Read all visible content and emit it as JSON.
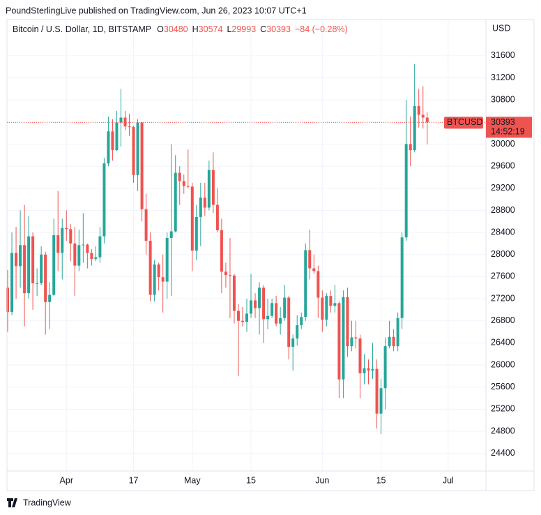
{
  "header": "PoundSterlingLive published on TradingView.com, Jun 26, 2023 10:07 UTC+1",
  "footer": "TradingView",
  "chart_data": {
    "type": "candlestick",
    "title": "Bitcoin / U.S. Dollar, 1D, BITSTAMP",
    "ohlc_labels": [
      "O",
      "H",
      "L",
      "C"
    ],
    "change": "−84 (−0.28%)",
    "currency": "USD",
    "symbol_tag": "BTCUSD",
    "countdown": "14:52:19",
    "up_color": "#26a69a",
    "down_color": "#ef5350",
    "grid": true,
    "x": [
      "2023-03-18",
      "2023-03-19",
      "2023-03-20",
      "2023-03-21",
      "2023-03-22",
      "2023-03-23",
      "2023-03-24",
      "2023-03-25",
      "2023-03-26",
      "2023-03-27",
      "2023-03-28",
      "2023-03-29",
      "2023-03-30",
      "2023-03-31",
      "2023-04-01",
      "2023-04-02",
      "2023-04-03",
      "2023-04-04",
      "2023-04-05",
      "2023-04-06",
      "2023-04-07",
      "2023-04-08",
      "2023-04-09",
      "2023-04-10",
      "2023-04-11",
      "2023-04-12",
      "2023-04-13",
      "2023-04-14",
      "2023-04-15",
      "2023-04-16",
      "2023-04-17",
      "2023-04-18",
      "2023-04-19",
      "2023-04-20",
      "2023-04-21",
      "2023-04-22",
      "2023-04-23",
      "2023-04-24",
      "2023-04-25",
      "2023-04-26",
      "2023-04-27",
      "2023-04-28",
      "2023-04-29",
      "2023-04-30",
      "2023-05-01",
      "2023-05-02",
      "2023-05-03",
      "2023-05-04",
      "2023-05-05",
      "2023-05-06",
      "2023-05-07",
      "2023-05-08",
      "2023-05-09",
      "2023-05-10",
      "2023-05-11",
      "2023-05-12",
      "2023-05-13",
      "2023-05-14",
      "2023-05-15",
      "2023-05-16",
      "2023-05-17",
      "2023-05-18",
      "2023-05-19",
      "2023-05-20",
      "2023-05-21",
      "2023-05-22",
      "2023-05-23",
      "2023-05-24",
      "2023-05-25",
      "2023-05-26",
      "2023-05-27",
      "2023-05-28",
      "2023-05-29",
      "2023-05-30",
      "2023-05-31",
      "2023-06-01",
      "2023-06-02",
      "2023-06-03",
      "2023-06-04",
      "2023-06-05",
      "2023-06-06",
      "2023-06-07",
      "2023-06-08",
      "2023-06-09",
      "2023-06-10",
      "2023-06-11",
      "2023-06-12",
      "2023-06-13",
      "2023-06-14",
      "2023-06-15",
      "2023-06-16",
      "2023-06-17",
      "2023-06-18",
      "2023-06-19",
      "2023-06-20",
      "2023-06-21",
      "2023-06-22",
      "2023-06-23",
      "2023-06-24",
      "2023-06-25",
      "2023-06-26"
    ],
    "open": [
      27400,
      26960,
      28030,
      27790,
      28170,
      27300,
      28330,
      27480,
      27480,
      28000,
      27140,
      27270,
      28350,
      28030,
      28480,
      28460,
      28200,
      27800,
      28170,
      28180,
      28030,
      27920,
      27950,
      28330,
      29650,
      30230,
      29890,
      30390,
      30480,
      30320,
      30310,
      29440,
      30390,
      28820,
      28250,
      27270,
      27820,
      27590,
      27510,
      28300,
      28420,
      29480,
      29330,
      29240,
      29230,
      28070,
      28680,
      29030,
      28850,
      29530,
      28900,
      28440,
      27690,
      27630,
      27620,
      26980,
      26800,
      26780,
      26930,
      27170,
      27030,
      27400,
      26830,
      26890,
      27120,
      26750,
      26850,
      27220,
      26330,
      26480,
      26720,
      26870,
      28080,
      27750,
      27700,
      27220,
      26820,
      27250,
      27070,
      27120,
      25740,
      27230,
      26340,
      26500,
      26480,
      25850,
      25940,
      25900,
      25930,
      25120,
      25580,
      26340,
      26510,
      26340,
      26850,
      28310,
      30000,
      29890,
      30690,
      30530,
      30480
    ],
    "high": [
      27720,
      28400,
      28500,
      28800,
      28900,
      28700,
      28400,
      27750,
      28150,
      28050,
      27500,
      28650,
      29150,
      28650,
      28800,
      28550,
      28500,
      28450,
      28750,
      28200,
      28100,
      28150,
      28500,
      29750,
      30500,
      30450,
      30600,
      31000,
      30600,
      30550,
      30330,
      30450,
      30400,
      29100,
      28400,
      27900,
      27850,
      28000,
      28400,
      30000,
      29800,
      29600,
      29450,
      29900,
      29300,
      28900,
      29300,
      29300,
      29700,
      29850,
      29200,
      28650,
      27850,
      28300,
      27650,
      27100,
      27050,
      27200,
      27650,
      27300,
      27500,
      27450,
      27200,
      27200,
      27250,
      27050,
      27450,
      27250,
      26550,
      26900,
      26950,
      28200,
      28450,
      28000,
      27800,
      27350,
      27300,
      27350,
      27450,
      27150,
      27350,
      27400,
      26800,
      26800,
      26550,
      26200,
      26100,
      26400,
      26100,
      25750,
      26500,
      26800,
      26650,
      26950,
      28400,
      30800,
      30500,
      31450,
      31000,
      31050,
      30574
    ],
    "low": [
      26600,
      26900,
      27200,
      27400,
      26700,
      27200,
      27000,
      27250,
      27450,
      26550,
      26650,
      27250,
      27700,
      27550,
      28250,
      27880,
      27250,
      27700,
      27850,
      27750,
      27800,
      27880,
      27850,
      28200,
      29600,
      29700,
      29870,
      29950,
      30250,
      30150,
      29300,
      29150,
      28600,
      28000,
      27150,
      27150,
      27350,
      26950,
      27200,
      27250,
      28400,
      28900,
      29100,
      29200,
      27700,
      27900,
      28150,
      28700,
      28800,
      28750,
      28400,
      27300,
      27400,
      26850,
      26750,
      25800,
      26700,
      26600,
      26850,
      26850,
      26550,
      26400,
      26650,
      26850,
      26700,
      26550,
      26800,
      26100,
      25900,
      26350,
      26650,
      26800,
      27550,
      27650,
      26850,
      26600,
      26700,
      26950,
      26950,
      25400,
      25400,
      26150,
      26250,
      26300,
      25400,
      25650,
      25650,
      25750,
      24850,
      24750,
      25200,
      26300,
      26250,
      26250,
      26650,
      28250,
      29600,
      29850,
      30300,
      30280,
      29993
    ],
    "close": [
      26960,
      28030,
      27790,
      28170,
      27300,
      28330,
      27480,
      27480,
      28000,
      27140,
      27270,
      28350,
      28030,
      28480,
      28460,
      28200,
      27800,
      28170,
      28180,
      28030,
      27920,
      27950,
      28330,
      29650,
      30230,
      29890,
      30390,
      30480,
      30320,
      30310,
      29440,
      30390,
      28820,
      28250,
      27270,
      27820,
      27590,
      27510,
      28300,
      28420,
      29480,
      29330,
      29240,
      29230,
      28070,
      28680,
      29030,
      28850,
      29530,
      28900,
      28440,
      27690,
      27630,
      27620,
      26980,
      26800,
      26780,
      26930,
      27170,
      27030,
      27400,
      26830,
      26890,
      27120,
      26750,
      26850,
      27220,
      26330,
      26480,
      26720,
      26870,
      28080,
      27750,
      27700,
      27220,
      26820,
      27250,
      27070,
      27120,
      25740,
      27230,
      26340,
      26500,
      26480,
      25850,
      25940,
      25900,
      25930,
      25120,
      25580,
      26340,
      26510,
      26340,
      26850,
      28310,
      30000,
      29890,
      30690,
      30530,
      30480,
      30393
    ],
    "xlim": [
      "2023-03-17",
      "2023-07-10"
    ],
    "xticks": [
      {
        "value": "2023-04-01",
        "label": "Apr"
      },
      {
        "value": "2023-04-17",
        "label": "17"
      },
      {
        "value": "2023-05-01",
        "label": "May"
      },
      {
        "value": "2023-05-15",
        "label": "15"
      },
      {
        "value": "2023-06-01",
        "label": "Jun"
      },
      {
        "value": "2023-06-15",
        "label": "15"
      },
      {
        "value": "2023-07-01",
        "label": "Jul"
      }
    ],
    "ylim": [
      24080,
      32230
    ],
    "yticks": [
      24400,
      24800,
      25200,
      25600,
      26000,
      26400,
      26800,
      27200,
      27600,
      28000,
      28400,
      28800,
      29200,
      29600,
      30000,
      30400,
      30800,
      31200,
      31600
    ]
  }
}
